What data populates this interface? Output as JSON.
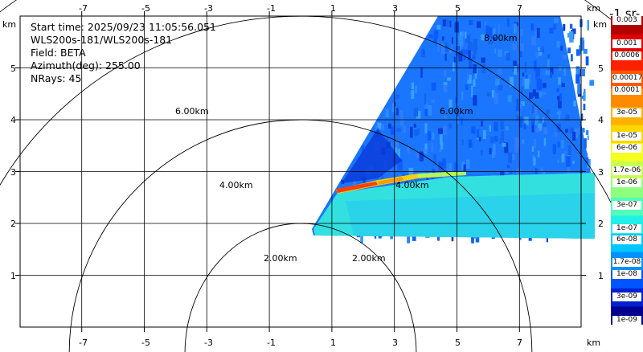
{
  "info": {
    "start_time": "Start time: 2025/09/23 11:05:56.051",
    "instrument": "WLS200s-181/WLS200s-181",
    "field": "Field: BETA",
    "azimuth": "Azimuth(deg): 255.00",
    "nrays": "NRays: 45"
  },
  "axes": {
    "x_unit": "km",
    "y_unit": "km",
    "x_ticks": [
      "-7",
      "-5",
      "-3",
      "-1",
      "1",
      "3",
      "5",
      "7"
    ],
    "y_ticks": [
      "1",
      "2",
      "3",
      "4",
      "5"
    ]
  },
  "range_rings": {
    "labels_left": [
      "6.00km",
      "4.00km",
      "2.00km"
    ],
    "labels_right": [
      "8.00km",
      "6.00km",
      "4.00km",
      "2.00km"
    ]
  },
  "colorbar": {
    "title": "-1 sr-",
    "labels": [
      "0.003",
      "0.001",
      "0.0006",
      "0.00017",
      "0.0001",
      "3e-05",
      "1e-05",
      "6e-06",
      "1.7e-06",
      "1e-06",
      "3e-07",
      "1e-07",
      "6e-08",
      "1.7e-08",
      "1e-08",
      "3e-09",
      "1e-09"
    ],
    "colors": [
      "#b30000",
      "#e00000",
      "#ff2000",
      "#ff5a00",
      "#ff8a00",
      "#ffb000",
      "#ffd700",
      "#f5ff20",
      "#c8ff50",
      "#90ff80",
      "#50ffb8",
      "#20f0e8",
      "#00c8ff",
      "#0090ff",
      "#0055ff",
      "#0020d0",
      "#00008f"
    ]
  }
}
